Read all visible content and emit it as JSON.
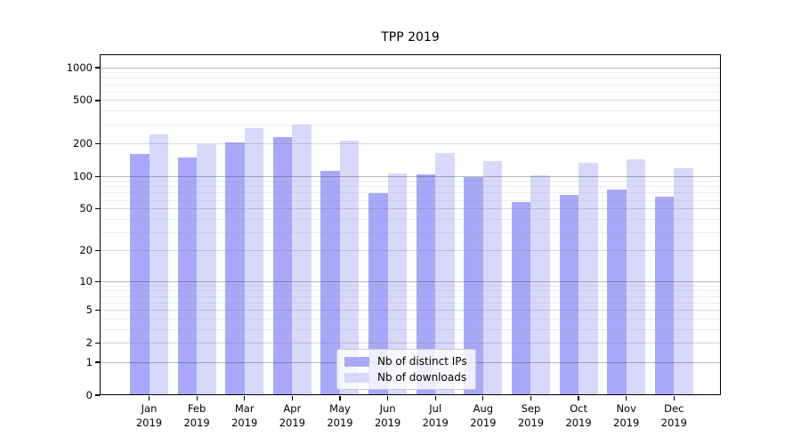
{
  "chart_data": {
    "type": "bar",
    "title": "TPP 2019",
    "categories": [
      "Jan 2019",
      "Feb 2019",
      "Mar 2019",
      "Apr 2019",
      "May 2019",
      "Jun 2019",
      "Jul 2019",
      "Aug 2019",
      "Sep 2019",
      "Oct 2019",
      "Nov 2019",
      "Dec 2019"
    ],
    "series": [
      {
        "name": "Nb of distinct IPs",
        "color": "#a8a8fa",
        "values": [
          160,
          150,
          207,
          230,
          112,
          70,
          104,
          99,
          58,
          67,
          76,
          65
        ]
      },
      {
        "name": "Nb of downloads",
        "color": "#d8d8fa",
        "values": [
          244,
          199,
          278,
          301,
          215,
          107,
          164,
          139,
          103,
          134,
          145,
          118
        ]
      }
    ],
    "xlabel": "",
    "ylabel": "",
    "yscale": "symlog",
    "ylim": [
      0,
      1327
    ],
    "yticks": [
      0,
      1,
      2,
      5,
      10,
      20,
      50,
      100,
      200,
      500,
      1000
    ],
    "grid": true,
    "legend_position": "lower-center",
    "colors": {
      "grid_major": "rgba(70,70,70,0.40)",
      "grid_mid": "rgba(120,120,120,0.30)",
      "grid_minor": "rgba(150,150,150,0.18)",
      "spine": "#000000",
      "background": "#ffffff"
    }
  }
}
